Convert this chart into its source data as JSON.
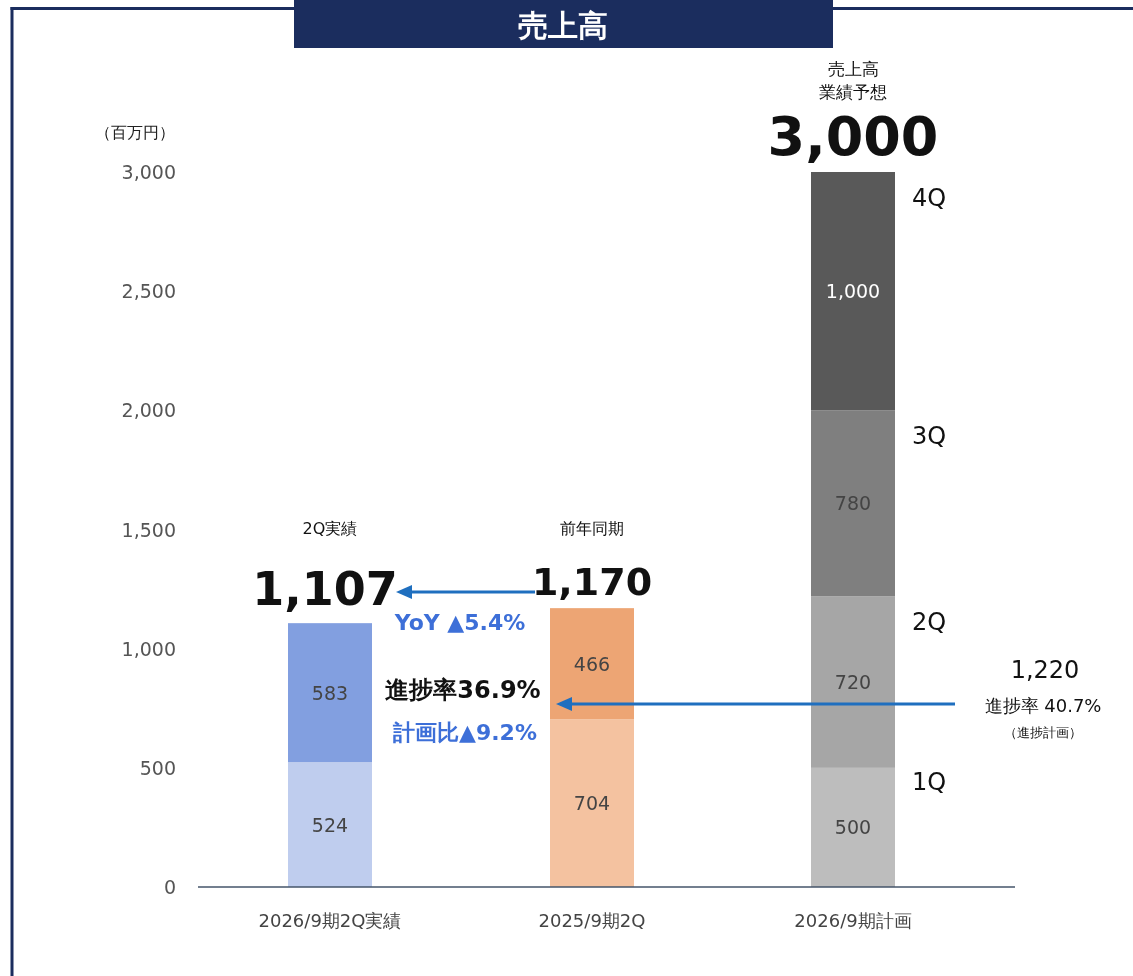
{
  "chart_data": {
    "type": "bar",
    "title": "売上高",
    "ylabel": "（百万円）",
    "stacked": true,
    "categories": [
      "2026/9期2Q実績",
      "2025/9期2Q",
      "2026/9期計画"
    ],
    "series": [
      {
        "name": "1Q",
        "colors": [
          "#bfcdee",
          "#f4c2a0",
          "#bdbdbd"
        ],
        "values": [
          524,
          704,
          500
        ],
        "value_labels": [
          "524",
          "704",
          "500"
        ]
      },
      {
        "name": "2Q",
        "colors": [
          "#829fe0",
          "#eda574",
          "#a6a6a6"
        ],
        "values": [
          583,
          466,
          720
        ],
        "value_labels": [
          "583",
          "466",
          "720"
        ]
      },
      {
        "name": "3Q",
        "color": "#7f7f7f",
        "values": [
          null,
          null,
          780
        ],
        "value_labels": [
          null,
          null,
          "780"
        ]
      },
      {
        "name": "4Q",
        "color": "#595959",
        "values": [
          null,
          null,
          1000
        ],
        "value_labels": [
          null,
          null,
          "1,000"
        ]
      }
    ],
    "totals": [
      "1,107",
      "1,170",
      "3,000"
    ],
    "ylim": [
      0,
      3000
    ],
    "yticks": [
      0,
      500,
      {
        "value": 1000,
        "label": "1,000"
      },
      {
        "value": 1500,
        "label": "1,500"
      },
      {
        "value": 2000,
        "label": "2,000"
      },
      {
        "value": 2500,
        "label": "2,500"
      },
      {
        "value": 3000,
        "label": "3,000"
      }
    ],
    "legend": "right",
    "annotations": [
      "2Q実績",
      "前年同期",
      "売上高",
      "業績予想",
      "YoY ▲5.4%",
      "進捗率36.9%",
      "計画比▲9.2%",
      "1,220",
      "進捗率 40.7%",
      "（進捗計画）"
    ]
  }
}
